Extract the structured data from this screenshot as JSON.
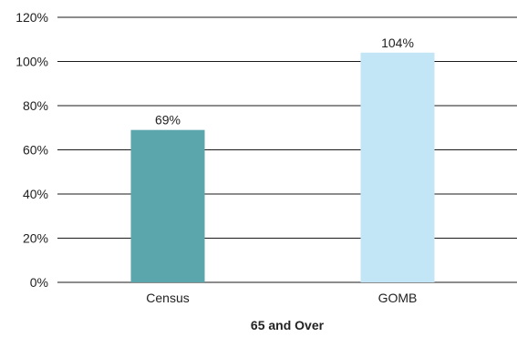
{
  "chart_data": {
    "type": "bar",
    "categories": [
      "Census",
      "GOMB"
    ],
    "values": [
      69,
      104
    ],
    "data_labels": [
      "69%",
      "104%"
    ],
    "colors": [
      "#5ba5ac",
      "#c3e6f7"
    ],
    "title": "",
    "xlabel": "65 and Over",
    "ylabel": "",
    "ylim": [
      0,
      120
    ],
    "yticks": [
      0,
      20,
      40,
      60,
      80,
      100,
      120
    ],
    "ytick_labels": [
      "0%",
      "20%",
      "40%",
      "60%",
      "80%",
      "100%",
      "120%"
    ],
    "grid": true,
    "legend": "none"
  }
}
